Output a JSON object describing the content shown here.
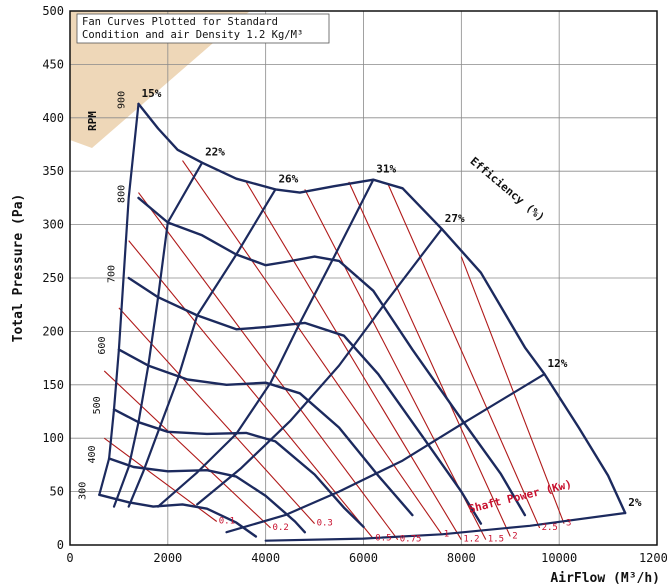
{
  "chart_data": {
    "type": "line",
    "title_lines": [
      "Fan  Curves  Plotted  for  Standard",
      "Condition and air Density 1.2 Kg/M³"
    ],
    "xlabel": "AirFlow (M³/h)",
    "ylabel": "Total Pressure (Pa)",
    "xlim": [
      0,
      12000
    ],
    "ylim": [
      0,
      500
    ],
    "xticks": [
      0,
      2000,
      4000,
      6000,
      8000,
      10000,
      12000
    ],
    "yticks": [
      0,
      50,
      100,
      150,
      200,
      250,
      300,
      350,
      400,
      450,
      500
    ],
    "grid": true,
    "colors": {
      "rpm": "#1c2a5e",
      "efficiency": "#1c2a5e",
      "power": "#b01a1a",
      "power_label": "#c8102e",
      "shade": "#e8c9a0"
    },
    "rpm_axis_label": "RPM",
    "efficiency_axis_label": "Efficiency (%)",
    "power_axis_label": "Shaft Power (Kw)",
    "rpm_curves": [
      {
        "label": "900",
        "points": [
          [
            1400,
            413
          ],
          [
            1800,
            390
          ],
          [
            2200,
            370
          ],
          [
            2700,
            358
          ],
          [
            3400,
            343
          ],
          [
            4200,
            333
          ],
          [
            4700,
            330
          ],
          [
            5400,
            336
          ],
          [
            6200,
            342
          ],
          [
            6800,
            334
          ],
          [
            7600,
            296
          ],
          [
            8400,
            255
          ],
          [
            9300,
            185
          ],
          [
            9700,
            160
          ],
          [
            10400,
            110
          ],
          [
            11000,
            65
          ],
          [
            11350,
            30
          ]
        ]
      },
      {
        "label": "800",
        "points": [
          [
            1400,
            325
          ],
          [
            2000,
            302
          ],
          [
            2700,
            290
          ],
          [
            3400,
            272
          ],
          [
            4000,
            262
          ],
          [
            4400,
            265
          ],
          [
            5000,
            270
          ],
          [
            5500,
            266
          ],
          [
            6200,
            238
          ],
          [
            7000,
            183
          ],
          [
            8000,
            118
          ],
          [
            8800,
            67
          ],
          [
            9300,
            28
          ]
        ]
      },
      {
        "label": "700",
        "points": [
          [
            1200,
            250
          ],
          [
            1800,
            232
          ],
          [
            2600,
            215
          ],
          [
            3400,
            202
          ],
          [
            4000,
            204
          ],
          [
            4800,
            208
          ],
          [
            5600,
            196
          ],
          [
            6300,
            160
          ],
          [
            7200,
            102
          ],
          [
            8000,
            50
          ],
          [
            8400,
            20
          ]
        ]
      },
      {
        "label": "600",
        "points": [
          [
            1000,
            183
          ],
          [
            1600,
            168
          ],
          [
            2400,
            155
          ],
          [
            3200,
            150
          ],
          [
            4000,
            152
          ],
          [
            4700,
            142
          ],
          [
            5500,
            110
          ],
          [
            6300,
            65
          ],
          [
            7000,
            28
          ]
        ]
      },
      {
        "label": "500",
        "points": [
          [
            900,
            127
          ],
          [
            1400,
            115
          ],
          [
            2000,
            106
          ],
          [
            2800,
            104
          ],
          [
            3600,
            105
          ],
          [
            4200,
            97
          ],
          [
            5000,
            66
          ],
          [
            5600,
            35
          ],
          [
            6000,
            17
          ]
        ]
      },
      {
        "label": "400",
        "points": [
          [
            800,
            81
          ],
          [
            1300,
            73
          ],
          [
            2000,
            69
          ],
          [
            2800,
            70
          ],
          [
            3400,
            64
          ],
          [
            4000,
            46
          ],
          [
            4600,
            22
          ],
          [
            4800,
            12
          ]
        ]
      },
      {
        "label": "300",
        "points": [
          [
            600,
            47
          ],
          [
            1200,
            40
          ],
          [
            1700,
            36
          ],
          [
            2300,
            38
          ],
          [
            2800,
            34
          ],
          [
            3400,
            21
          ],
          [
            3800,
            8
          ]
        ]
      }
    ],
    "efficiency_curves": [
      {
        "label": "15%",
        "points": [
          [
            1400,
            413
          ],
          [
            1200,
            325
          ],
          [
            1000,
            183
          ],
          [
            900,
            127
          ],
          [
            800,
            81
          ],
          [
            600,
            47
          ]
        ]
      },
      {
        "label": "22%",
        "points": [
          [
            2700,
            358
          ],
          [
            2000,
            302
          ],
          [
            1800,
            232
          ],
          [
            1600,
            168
          ],
          [
            1400,
            115
          ],
          [
            1200,
            73
          ],
          [
            900,
            36
          ]
        ]
      },
      {
        "label": "26%",
        "points": [
          [
            4200,
            333
          ],
          [
            3400,
            272
          ],
          [
            2600,
            215
          ],
          [
            2200,
            155
          ],
          [
            1800,
            106
          ],
          [
            1500,
            69
          ],
          [
            1200,
            36
          ]
        ]
      },
      {
        "label": "31%",
        "points": [
          [
            6200,
            342
          ],
          [
            5400,
            270
          ],
          [
            4700,
            208
          ],
          [
            4100,
            152
          ],
          [
            3400,
            104
          ],
          [
            2600,
            68
          ],
          [
            1800,
            36
          ]
        ]
      },
      {
        "label": "27%",
        "points": [
          [
            7600,
            296
          ],
          [
            6500,
            230
          ],
          [
            5500,
            168
          ],
          [
            4500,
            116
          ],
          [
            3500,
            72
          ],
          [
            2600,
            38
          ]
        ]
      },
      {
        "label": "12%",
        "points": [
          [
            9700,
            160
          ],
          [
            8000,
            113
          ],
          [
            6800,
            79
          ],
          [
            5500,
            50
          ],
          [
            4400,
            28
          ],
          [
            3200,
            12
          ]
        ]
      },
      {
        "label": "2%",
        "points": [
          [
            11350,
            30
          ],
          [
            9400,
            18
          ],
          [
            7600,
            10
          ],
          [
            6000,
            6
          ],
          [
            4000,
            4
          ]
        ]
      }
    ],
    "power_lines": [
      {
        "label": "0.1",
        "start": [
          700,
          100
        ],
        "end": [
          3000,
          22
        ]
      },
      {
        "label": "0.2",
        "start": [
          700,
          163
        ],
        "end": [
          4100,
          16
        ]
      },
      {
        "label": "0.3",
        "start": [
          1000,
          222
        ],
        "end": [
          5000,
          20
        ]
      },
      {
        "label": "0.5",
        "start": [
          1200,
          285
        ],
        "end": [
          6200,
          6
        ]
      },
      {
        "label": "0.75",
        "start": [
          1400,
          330
        ],
        "end": [
          6700,
          5
        ]
      },
      {
        "label": "1",
        "start": [
          2300,
          360
        ],
        "end": [
          7600,
          10
        ]
      },
      {
        "label": "1.2",
        "start": [
          3600,
          340
        ],
        "end": [
          8000,
          5
        ]
      },
      {
        "label": "1.5",
        "start": [
          4800,
          333
        ],
        "end": [
          8500,
          5
        ]
      },
      {
        "label": "2",
        "start": [
          5700,
          340
        ],
        "end": [
          9000,
          8
        ]
      },
      {
        "label": "2.5",
        "start": [
          6500,
          338
        ],
        "end": [
          9600,
          16
        ]
      },
      {
        "label": "3",
        "start": [
          8000,
          270
        ],
        "end": [
          10100,
          20
        ]
      }
    ]
  }
}
